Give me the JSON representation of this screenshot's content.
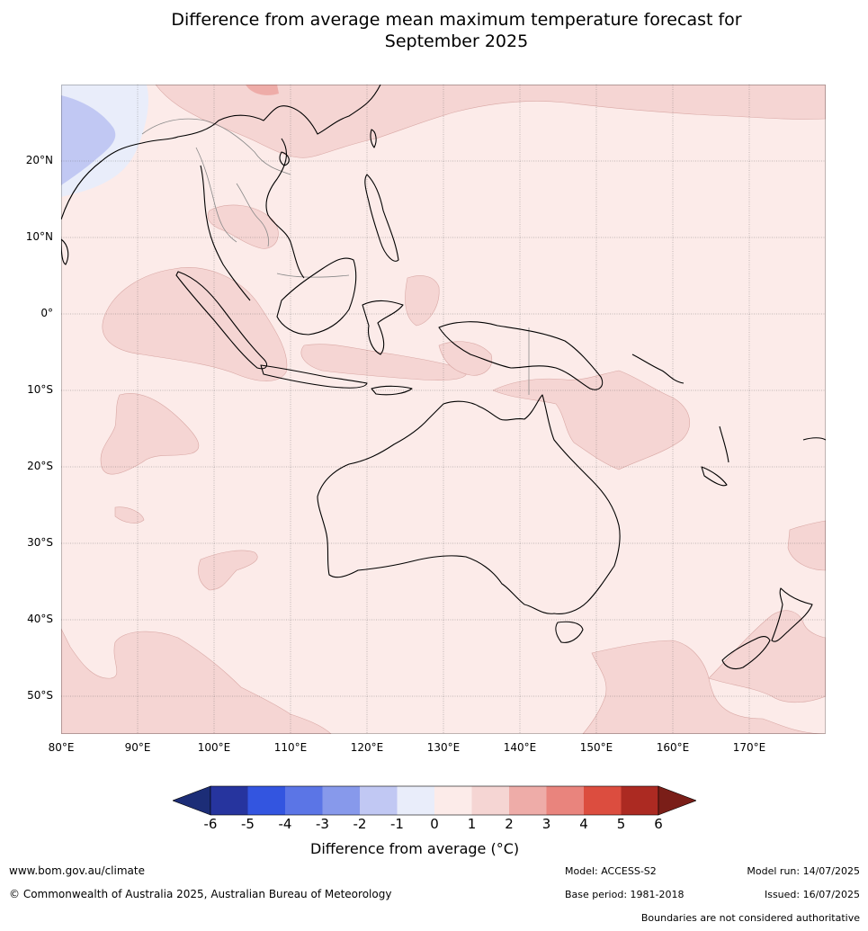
{
  "title_line1": "Difference from average mean maximum temperature forecast for",
  "title_line2": "September 2025",
  "map": {
    "lat_labels": [
      "20°N",
      "10°N",
      "0°",
      "10°S",
      "20°S",
      "30°S",
      "40°S",
      "50°S"
    ],
    "lon_labels": [
      "80°E",
      "90°E",
      "100°E",
      "110°E",
      "120°E",
      "130°E",
      "140°E",
      "150°E",
      "160°E",
      "170°E"
    ],
    "lon_range": [
      80,
      180
    ],
    "lat_range": [
      -55,
      30
    ],
    "background_anomaly_class": "0 to 1",
    "colors": {
      "c0_1": "#fcebe9",
      "c1_2": "#f5d5d3",
      "c2_3": "#eeaca8",
      "cm1_0": "#e9edfa",
      "cm2_m1": "#c1c8f3",
      "coast": "#000000",
      "border": "#888888",
      "grid": "#555555"
    }
  },
  "colorbar": {
    "ticks": [
      "-6",
      "-5",
      "-4",
      "-3",
      "-2",
      "-1",
      "0",
      "1",
      "2",
      "3",
      "4",
      "5",
      "6"
    ],
    "colors": [
      "#26349e",
      "#3355e0",
      "#5b75e6",
      "#8799eb",
      "#c1c8f3",
      "#e9edfa",
      "#fcebe9",
      "#f5d5d3",
      "#eeaca8",
      "#e9847d",
      "#dc4d3f",
      "#ac2a22"
    ],
    "under_color": "#1c2d77",
    "over_color": "#7a1e18",
    "label": "Difference from average (°C)"
  },
  "footer": {
    "website": "www.bom.gov.au/climate",
    "copyright": "© Commonwealth of Australia 2025, Australian Bureau of Meteorology",
    "model": "Model: ACCESS-S2",
    "base_period": "Base period: 1981-2018",
    "model_run": "Model run: 14/07/2025",
    "issued": "Issued: 16/07/2025",
    "disclaimer": "Boundaries are not considered authoritative"
  }
}
